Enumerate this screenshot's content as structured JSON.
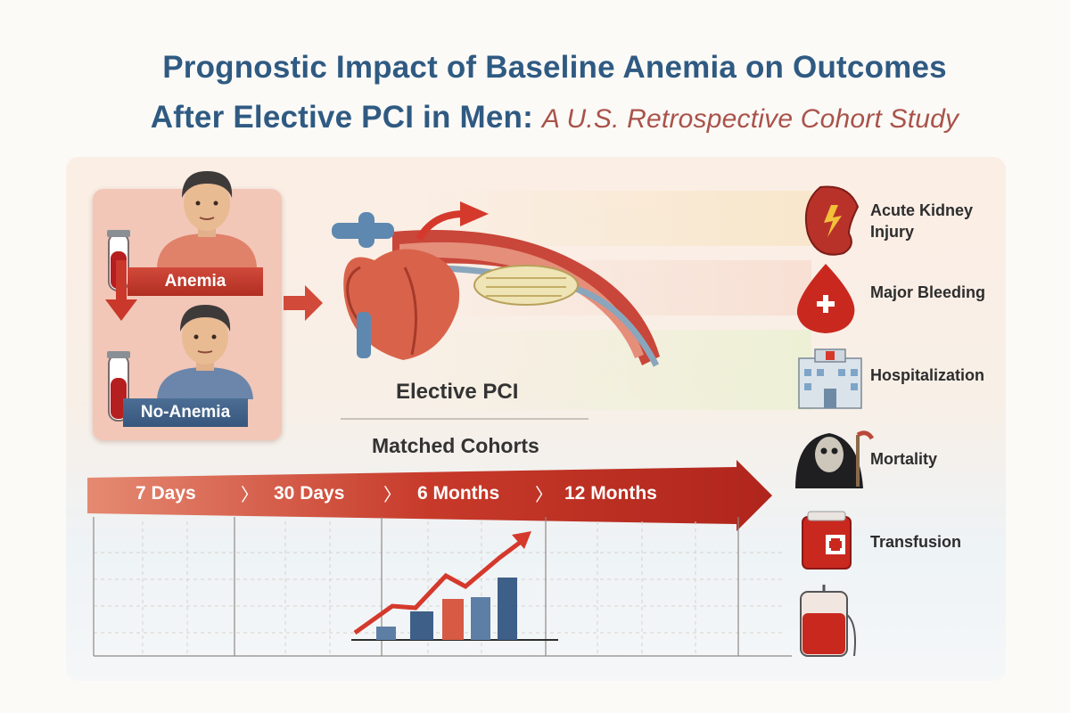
{
  "title": {
    "line1": "Prognostic Impact of Baseline Anemia on Outcomes",
    "line2_main": "After Elective PCI in Men:",
    "line2_sub": "A U.S. Retrospective Cohort Study"
  },
  "patients": {
    "anemia_label": "Anemia",
    "no_anemia_label": "No-Anemia"
  },
  "procedure": {
    "label": "Elective PCI",
    "cohort_label": "Matched Cohorts"
  },
  "timeline": [
    "7 Days",
    "30 Days",
    "6 Months",
    "12 Months"
  ],
  "outcomes": [
    {
      "label_line1": "Acute Kidney",
      "label_line2": "Injury",
      "icon": "kidney-icon"
    },
    {
      "label_line1": "Major Bleeding",
      "label_line2": "",
      "icon": "blood-drop-icon"
    },
    {
      "label_line1": "Hospitalization",
      "label_line2": "",
      "icon": "hospital-icon"
    },
    {
      "label_line1": "Mortality",
      "label_line2": "",
      "icon": "grim-reaper-icon"
    },
    {
      "label_line1": "Transfusion",
      "label_line2": "",
      "icon": "blood-bag-icon"
    }
  ],
  "colors": {
    "title": "#2f5a82",
    "accent_red": "#c0392b",
    "accent_blue": "#3c5f88"
  }
}
